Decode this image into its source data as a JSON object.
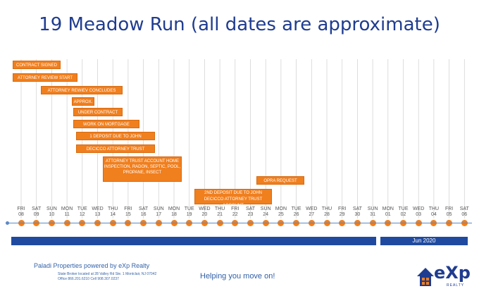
{
  "title": "19 Meadow Run (all dates are approximate)",
  "tasks": [
    {
      "label": "CONTRACT SIGNED"
    },
    {
      "label": "ATTORNEY REVIEW START"
    },
    {
      "label": "ATTORNEY REWIEV CONCLUDES"
    },
    {
      "label": "APPROX."
    },
    {
      "label": "UNDER CONTRACT"
    },
    {
      "label": "WORK ON MORTGAGE"
    },
    {
      "label": "1 DEPOSIT DUE TO JOHN"
    },
    {
      "label": "DECICCO ATTORNEY TRUST"
    },
    {
      "label": "ATTORNEY TRUST ACCOUNT HOME INSPECTION, RADON, SEPTIC, POOL, PROPANE, INSECT"
    },
    {
      "label": "OPRA REQUEST"
    },
    {
      "label": "2ND DEPOSIT DUE TO JOHN DECICCO ATTORNEY TRUST ACCOUNT"
    }
  ],
  "days": [
    {
      "dow": "FRI",
      "date": "08"
    },
    {
      "dow": "SAT",
      "date": "09"
    },
    {
      "dow": "SUN",
      "date": "10"
    },
    {
      "dow": "MON",
      "date": "11"
    },
    {
      "dow": "TUE",
      "date": "12"
    },
    {
      "dow": "WED",
      "date": "13"
    },
    {
      "dow": "THU",
      "date": "14"
    },
    {
      "dow": "FRI",
      "date": "15"
    },
    {
      "dow": "SAT",
      "date": "16"
    },
    {
      "dow": "SUN",
      "date": "17"
    },
    {
      "dow": "MON",
      "date": "18"
    },
    {
      "dow": "TUE",
      "date": "19"
    },
    {
      "dow": "WED",
      "date": "20"
    },
    {
      "dow": "THU",
      "date": "21"
    },
    {
      "dow": "FRI",
      "date": "22"
    },
    {
      "dow": "SAT",
      "date": "23"
    },
    {
      "dow": "SUN",
      "date": "24"
    },
    {
      "dow": "MON",
      "date": "25"
    },
    {
      "dow": "TUE",
      "date": "26"
    },
    {
      "dow": "WED",
      "date": "27"
    },
    {
      "dow": "THU",
      "date": "28"
    },
    {
      "dow": "FRI",
      "date": "29"
    },
    {
      "dow": "SAT",
      "date": "30"
    },
    {
      "dow": "SUN",
      "date": "31"
    },
    {
      "dow": "MON",
      "date": "01"
    },
    {
      "dow": "TUE",
      "date": "02"
    },
    {
      "dow": "WED",
      "date": "03"
    },
    {
      "dow": "THU",
      "date": "04"
    },
    {
      "dow": "FRI",
      "date": "05"
    },
    {
      "dow": "SAT",
      "date": "06"
    }
  ],
  "months": [
    {
      "label": ""
    },
    {
      "label": "Jun 2020"
    }
  ],
  "footer": {
    "company": "Paladi Properties powered by eXp Realty",
    "address_line1": "State Broker located at 28 Valley Rd Ste. 1 Montclair, NJ 07042",
    "address_line2": "Office 866.201.6210 Cell 908.307.0237",
    "tagline": "Helping you move on!"
  },
  "logo": {
    "text": "eXp",
    "sub": "REALTY"
  },
  "colors": {
    "task": "#f07f1e",
    "title": "#1f3c8f",
    "month_bar": "#1f4aa0",
    "axis": "#5c89c6"
  }
}
